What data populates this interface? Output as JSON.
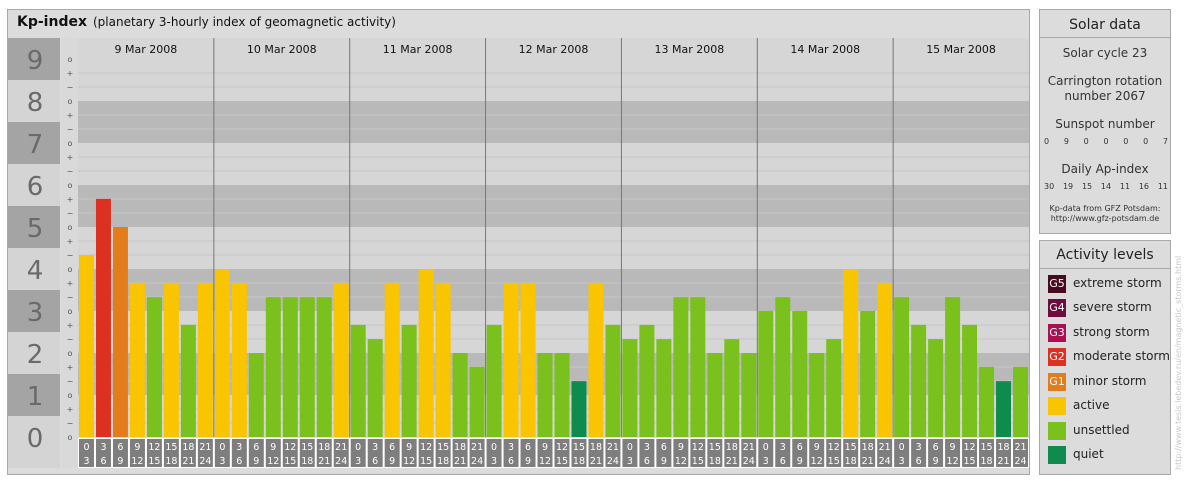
{
  "header": {
    "title": "Kp-index",
    "subtitle": "(planetary 3-hourly index of geomagnetic activity)"
  },
  "chart_data": {
    "type": "bar",
    "ylim": [
      0,
      9
    ],
    "y_ticks": [
      "0",
      "1",
      "2",
      "3",
      "4",
      "5",
      "6",
      "7",
      "8",
      "9"
    ],
    "sub_tick_symbols": [
      "+",
      "o",
      "−"
    ],
    "days": [
      "9 Mar 2008",
      "10 Mar 2008",
      "11 Mar 2008",
      "12 Mar 2008",
      "13 Mar 2008",
      "14 Mar 2008",
      "15 Mar 2008"
    ],
    "intervals": [
      [
        "0",
        "3"
      ],
      [
        "3",
        "6"
      ],
      [
        "6",
        "9"
      ],
      [
        "9",
        "12"
      ],
      [
        "12",
        "15"
      ],
      [
        "15",
        "18"
      ],
      [
        "18",
        "21"
      ],
      [
        "21",
        "24"
      ]
    ],
    "values": [
      [
        4.33,
        5.67,
        5.0,
        3.67,
        3.33,
        3.67,
        2.67,
        3.67
      ],
      [
        4.0,
        3.67,
        2.0,
        3.33,
        3.33,
        3.33,
        3.33,
        3.67
      ],
      [
        2.67,
        2.33,
        3.67,
        2.67,
        4.0,
        3.67,
        2.0,
        1.67
      ],
      [
        2.67,
        3.67,
        3.67,
        2.0,
        2.0,
        1.33,
        3.67,
        2.67
      ],
      [
        2.33,
        2.67,
        2.33,
        3.33,
        3.33,
        2.0,
        2.33,
        2.0
      ],
      [
        3.0,
        3.33,
        3.0,
        2.0,
        2.33,
        4.0,
        3.0,
        3.67
      ],
      [
        3.33,
        2.67,
        2.33,
        3.33,
        2.67,
        1.67,
        1.33,
        1.67
      ]
    ],
    "colors": {
      "quiet": "#0e8c4e",
      "unsettled": "#7ac11e",
      "active": "#f8c500",
      "minor_storm": "#e37d1c",
      "moderate_storm": "#dc3121"
    },
    "band_colors": {
      "dark": "#b9b9b9",
      "light": "#d6d6d6",
      "y_axis": "#a4a4a4",
      "x_axis": "#7e7e7e"
    }
  },
  "solar_data": {
    "title": "Solar data",
    "cycle": "Solar cycle 23",
    "carrington_1": "Carrington rotation",
    "carrington_2": "number 2067",
    "sunspot_title": "Sunspot number",
    "sunspot_values": [
      "0",
      "9",
      "0",
      "0",
      "0",
      "0",
      "7"
    ],
    "ap_title": "Daily Ap-index",
    "ap_values": [
      "30",
      "19",
      "15",
      "14",
      "11",
      "16",
      "11"
    ],
    "source_1": "Kp-data from GFZ Potsdam:",
    "source_2": "http://www.gfz-potsdam.de"
  },
  "activity_levels": {
    "title": "Activity levels",
    "items": [
      {
        "code": "G5",
        "label": "extreme storm",
        "color": "#4a0a1e"
      },
      {
        "code": "G4",
        "label": "severe storm",
        "color": "#6e0d3d"
      },
      {
        "code": "G3",
        "label": "strong storm",
        "color": "#a8104f"
      },
      {
        "code": "G2",
        "label": "moderate storm",
        "color": "#dc3121"
      },
      {
        "code": "G1",
        "label": "minor storm",
        "color": "#e37d1c"
      },
      {
        "code": "",
        "label": "active",
        "color": "#f8c500"
      },
      {
        "code": "",
        "label": "unsettled",
        "color": "#7ac11e"
      },
      {
        "code": "",
        "label": "quiet",
        "color": "#0e8c4e"
      }
    ]
  },
  "credit": "http://www.tesis.lebedev.ru/en/magnetic_storms.html"
}
